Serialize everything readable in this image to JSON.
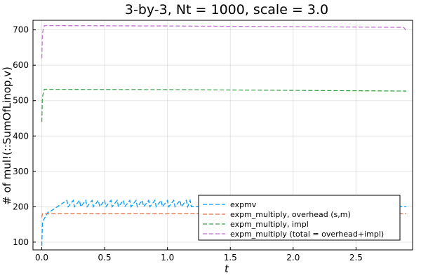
{
  "chart_data": {
    "type": "line",
    "title": "3-by-3, Nt = 1000, scale = 3.0",
    "xlabel": "t",
    "ylabel": "# of mul!(::SumOfLinop,v)",
    "xlim": [
      -0.07,
      2.95
    ],
    "ylim": [
      78,
      727
    ],
    "xticks": [
      0.0,
      0.5,
      1.0,
      1.5,
      2.0,
      2.5
    ],
    "xtick_labels": [
      "0.0",
      "0.5",
      "1.0",
      "1.5",
      "2.0",
      "2.5"
    ],
    "yticks": [
      100,
      200,
      300,
      400,
      500,
      600,
      700
    ],
    "ytick_labels": [
      "100",
      "200",
      "300",
      "400",
      "500",
      "600",
      "700"
    ],
    "grid": true,
    "legend_position": "bottom-right",
    "series": [
      {
        "name": "expmv",
        "color": "#009af9",
        "style": "dashed",
        "x": [
          0.0,
          0.005,
          0.01,
          0.05,
          0.06,
          0.2,
          0.21,
          0.25,
          0.26,
          0.3,
          0.31,
          0.35,
          0.36,
          0.4,
          0.41,
          0.45,
          0.46,
          0.5,
          0.51,
          0.55,
          0.56,
          0.6,
          0.61,
          0.65,
          0.66,
          0.7,
          0.71,
          0.75,
          0.76,
          0.8,
          0.81,
          0.85,
          0.86,
          0.9,
          0.91,
          0.95,
          0.96,
          1.0,
          1.01,
          1.05,
          1.06,
          1.1,
          1.11,
          1.15,
          1.16,
          1.18,
          1.19,
          2.9
        ],
        "values": [
          90,
          155,
          160,
          185,
          185,
          218,
          200,
          218,
          200,
          218,
          200,
          218,
          200,
          218,
          200,
          218,
          200,
          218,
          200,
          218,
          200,
          218,
          200,
          218,
          200,
          218,
          200,
          218,
          200,
          218,
          200,
          218,
          200,
          218,
          200,
          218,
          200,
          218,
          200,
          218,
          200,
          218,
          200,
          218,
          200,
          218,
          200,
          200
        ]
      },
      {
        "name": "expm_multiply, overhead (s,m)",
        "color": "#e26f46",
        "style": "dashed",
        "x": [
          0.0,
          0.005,
          2.9
        ],
        "values": [
          170,
          180,
          180
        ]
      },
      {
        "name": "expm_multiply, impl",
        "color": "#3da44d",
        "style": "dashed",
        "x": [
          0.0,
          0.005,
          0.02,
          1.0,
          2.0,
          2.9
        ],
        "values": [
          440,
          510,
          532,
          531,
          529,
          527
        ]
      },
      {
        "name": "expm_multiply (total = overhead+impl)",
        "color": "#c271d2",
        "style": "dashed",
        "x": [
          0.0,
          0.005,
          0.02,
          1.0,
          2.0,
          2.88,
          2.9
        ],
        "values": [
          620,
          690,
          712,
          711,
          709,
          707,
          697
        ]
      }
    ]
  }
}
